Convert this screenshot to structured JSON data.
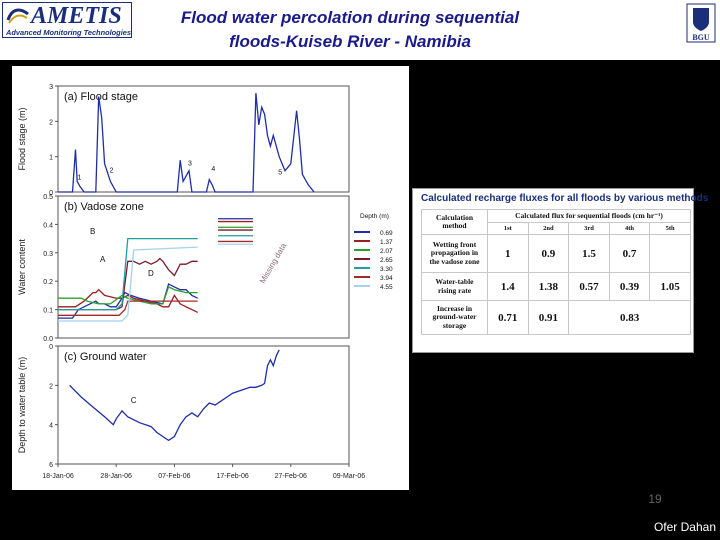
{
  "slide": {
    "title_line1": "Flood water percolation during sequential",
    "title_line2": "floods-Kuiseb River - Namibia",
    "page_number": "19",
    "author": "Ofer Dahan"
  },
  "logos": {
    "left_name": "AMETIS",
    "left_tagline": "Advanced Monitoring Technologies",
    "right_name": "BGU"
  },
  "colors": {
    "title": "#1a1a8c",
    "logo_blue": "#1a2e7a",
    "line": "#1f2ea8",
    "background": "#000000"
  },
  "table": {
    "title": "Calculated recharge fluxes for all floods by various methods",
    "header_method": [
      "Calculation",
      "method"
    ],
    "header_flux": "Calculated flux for sequential floods (cm hr⁻¹)",
    "flood_labels": [
      "1st",
      "2nd",
      "3rd",
      "4th",
      "5th"
    ],
    "rows": [
      {
        "method": [
          "Wetting front",
          "propagation in",
          "the vadose zone"
        ],
        "values": [
          "1",
          "0.9",
          "1.5",
          "0.7",
          ""
        ]
      },
      {
        "method": [
          "Water-table",
          "rising rate"
        ],
        "values": [
          "1.4",
          "1.38",
          "0.57",
          "0.39",
          "1.05"
        ]
      },
      {
        "method": [
          "Increase in",
          "ground-water",
          "storage"
        ],
        "values": [
          "0.71",
          "0.91",
          "0.83"
        ]
      }
    ]
  },
  "chart_data": {
    "type": "line",
    "x_dates": [
      "18-Jan-06",
      "28-Jan-06",
      "07-Feb-06",
      "17-Feb-06",
      "27-Feb-06",
      "09-Mar-06"
    ],
    "x_day_range": [
      0,
      50
    ],
    "panels": [
      {
        "title": "(a) Flood stage",
        "ylabel": "Flood stage (m)",
        "ylim": [
          0,
          3
        ],
        "yticks": [
          "0",
          "1",
          "2",
          "3"
        ],
        "flood_labels": [
          {
            "label": "1",
            "day": 3.0,
            "y": 0.35
          },
          {
            "label": "2",
            "day": 8.5,
            "y": 0.55
          },
          {
            "label": "3",
            "day": 22.0,
            "y": 0.75
          },
          {
            "label": "4",
            "day": 26.0,
            "y": 0.6
          },
          {
            "label": "5",
            "day": 37.5,
            "y": 0.5
          }
        ],
        "series": [
          {
            "x": [
              0,
              2.5,
              3.0,
              3.3,
              3.8,
              4.5,
              6.5,
              7.0,
              7.5,
              8.0,
              9.0,
              10.0,
              20.5,
              21.0,
              21.5,
              22.5,
              23.0,
              25.5,
              26.0,
              26.5,
              27.0,
              33.5,
              34.0,
              34.5,
              35.0,
              35.5,
              36.0,
              36.5,
              37.0,
              38.0,
              39.0,
              40.0,
              41.0,
              41.5,
              42.0,
              43.0,
              44.0
            ],
            "y": [
              0,
              0,
              1.2,
              0.3,
              0.15,
              0,
              0,
              2.7,
              2.1,
              0.8,
              0.3,
              0,
              0,
              0.9,
              0.3,
              0.6,
              0,
              0,
              0.35,
              0.2,
              0,
              0,
              2.8,
              1.9,
              2.4,
              2.2,
              1.6,
              1.3,
              1.6,
              1.0,
              0.6,
              0.8,
              2.3,
              1.5,
              0.5,
              0.2,
              0
            ]
          }
        ]
      },
      {
        "title": "(b) Vadose zone",
        "ylabel": "Water content",
        "ylim": [
          0,
          0.5
        ],
        "yticks": [
          "0.0",
          "0.1",
          "0.2",
          "0.3",
          "0.4",
          "0.5"
        ],
        "legend_title": "Depth (m)",
        "annotation": "Missing data",
        "point_labels": [
          "A",
          "B",
          "D"
        ],
        "series": [
          {
            "name": "0.69",
            "color": "#1f2ea8",
            "x": [
              0,
              2.5,
              3.5,
              5.5,
              6.5,
              7.0,
              8.0,
              9.0,
              10.0,
              11.0,
              11.5,
              12.5,
              14.0,
              16.0,
              18.0,
              19.0,
              20.0,
              21.0,
              22.0,
              23.0,
              24.0
            ],
            "y": [
              0.07,
              0.07,
              0.1,
              0.12,
              0.13,
              0.12,
              0.12,
              0.11,
              0.11,
              0.14,
              0.16,
              0.15,
              0.14,
              0.13,
              0.12,
              0.19,
              0.18,
              0.17,
              0.17,
              0.15,
              0.14
            ]
          },
          {
            "name": "1.37",
            "color": "#9a1f1f",
            "x": [
              0,
              3.0,
              4.5,
              6.0,
              6.5,
              7.0,
              8.0,
              10.0,
              11.0,
              12.0,
              13.0,
              15.0,
              17.0,
              18.0,
              19.0,
              20.0,
              21.0,
              22.0,
              23.0,
              24.0
            ],
            "y": [
              0.11,
              0.11,
              0.13,
              0.16,
              0.16,
              0.17,
              0.15,
              0.14,
              0.14,
              0.15,
              0.14,
              0.13,
              0.12,
              0.11,
              0.11,
              0.15,
              0.12,
              0.11,
              0.1,
              0.09
            ]
          },
          {
            "name": "2.07",
            "color": "#2ca02c",
            "x": [
              0,
              4.0,
              5.0,
              7.0,
              9.0,
              11.0,
              12.0,
              14.0,
              16.0,
              18.0,
              19.0,
              20.0,
              22.0,
              24.0
            ],
            "y": [
              0.14,
              0.14,
              0.13,
              0.12,
              0.12,
              0.15,
              0.14,
              0.13,
              0.12,
              0.12,
              0.18,
              0.17,
              0.16,
              0.16
            ]
          },
          {
            "name": "2.65",
            "color": "#7b1a2a",
            "x": [
              0,
              10.0,
              11.0,
              12.0,
              13.0,
              14.0,
              15.0,
              16.0,
              17.0,
              17.5,
              18.0,
              19.0,
              20.0,
              21.0,
              22.0,
              23.0,
              24.0
            ],
            "y": [
              0.1,
              0.1,
              0.11,
              0.27,
              0.27,
              0.26,
              0.27,
              0.26,
              0.27,
              0.28,
              0.27,
              0.24,
              0.22,
              0.26,
              0.26,
              0.27,
              0.27
            ]
          },
          {
            "name": "3.30",
            "color": "#1f9fa0",
            "x": [
              0,
              10.0,
              11.0,
              12.0,
              24.0
            ],
            "y": [
              0.1,
              0.1,
              0.12,
              0.35,
              0.35
            ]
          },
          {
            "name": "3.94",
            "color": "#a52a2a",
            "x": [
              0,
              10.5,
              11.5,
              12.0,
              24.0
            ],
            "y": [
              0.08,
              0.08,
              0.1,
              0.13,
              0.13
            ]
          },
          {
            "name": "4.55",
            "color": "#a3d2f0",
            "x": [
              0,
              11.0,
              12.0,
              13.0,
              24.0
            ],
            "y": [
              0.06,
              0.06,
              0.08,
              0.31,
              0.32
            ]
          }
        ]
      },
      {
        "title": "(c) Ground water",
        "ylabel": "Depth to water table (m)",
        "ylim": [
          6,
          0
        ],
        "yticks": [
          "0",
          "2",
          "4",
          "6"
        ],
        "point_labels": [
          "C"
        ],
        "series": [
          {
            "x": [
              2.0,
              4.0,
              6.0,
              8.0,
              9.5,
              10.0,
              11.0,
              12.0,
              14.0,
              16.0,
              17.0,
              18.0,
              19.0,
              20.0,
              21.0,
              22.0,
              23.0,
              24.0,
              25.0,
              26.0,
              27.0,
              28.0,
              29.0,
              30.0,
              31.0,
              32.0,
              33.0,
              34.0,
              35.0,
              35.5,
              36.0,
              36.5,
              37.0,
              37.5,
              38.0
            ],
            "y": [
              2.0,
              2.6,
              3.1,
              3.6,
              4.0,
              3.7,
              3.3,
              3.6,
              3.9,
              4.1,
              4.4,
              4.6,
              4.8,
              4.6,
              4.0,
              3.6,
              3.4,
              3.6,
              3.2,
              2.9,
              3.0,
              2.8,
              2.6,
              2.4,
              2.3,
              2.2,
              2.1,
              2.1,
              2.0,
              1.9,
              1.0,
              0.7,
              1.0,
              0.5,
              0.2
            ]
          }
        ]
      }
    ]
  }
}
